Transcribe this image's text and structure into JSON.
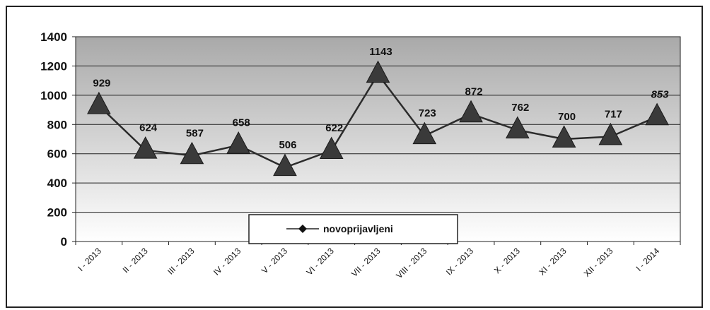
{
  "chart_data": {
    "type": "line",
    "title": "",
    "xlabel": "",
    "ylabel": "",
    "ylim": [
      0,
      1400
    ],
    "yticks": [
      0,
      200,
      400,
      600,
      800,
      1000,
      1200,
      1400
    ],
    "grid": true,
    "legend_position": "bottom-center",
    "categories": [
      "I - 2013",
      "II - 2013",
      "III - 2013",
      "IV - 2013",
      "V - 2013",
      "VI - 2013",
      "VII - 2013",
      "VIII - 2013",
      "IX - 2013",
      "X - 2013",
      "XI - 2013",
      "XII - 2013",
      "I - 2014"
    ],
    "series": [
      {
        "name": "novoprijavljeni",
        "values": [
          929,
          624,
          587,
          658,
          506,
          622,
          1143,
          723,
          872,
          762,
          700,
          717,
          853
        ],
        "labels": [
          "929",
          "624",
          "587",
          "658",
          "506",
          "622",
          "1143",
          "723",
          "872",
          "762",
          "700",
          "717",
          "853"
        ],
        "color": "#2b2b2b",
        "marker": "triangle"
      }
    ]
  }
}
